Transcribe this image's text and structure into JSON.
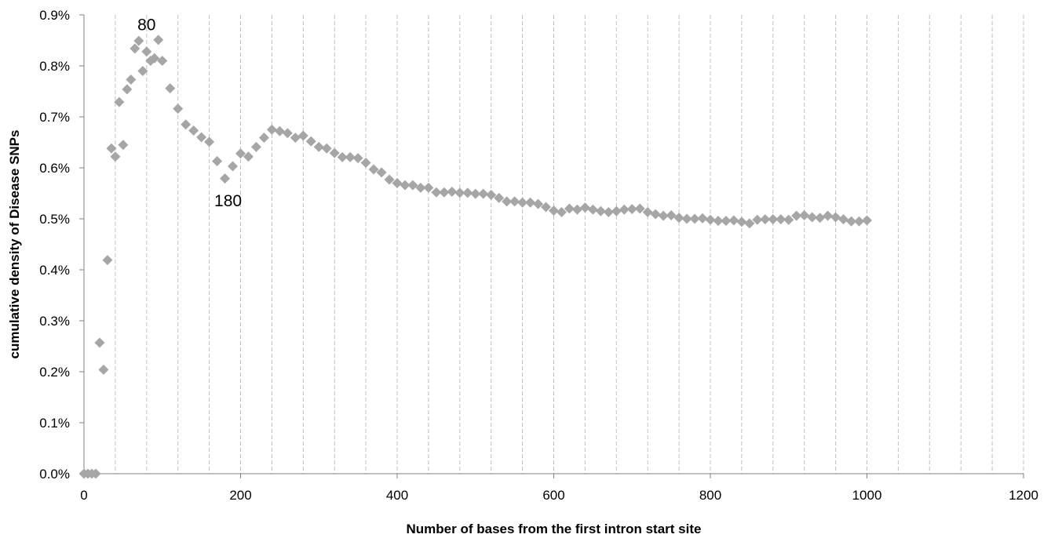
{
  "chart_data": {
    "type": "scatter",
    "xlabel": "Number of bases from the first intron start site",
    "ylabel": "cumulative density of Disease SNPs",
    "xlim": [
      0,
      1200
    ],
    "ylim": [
      0,
      0.9
    ],
    "x_ticks": [
      0,
      200,
      400,
      600,
      800,
      1000,
      1200
    ],
    "x_tick_labels": [
      "0",
      "200",
      "400",
      "600",
      "800",
      "1000",
      "1200"
    ],
    "y_ticks": [
      0,
      0.1,
      0.2,
      0.3,
      0.4,
      0.5,
      0.6,
      0.7,
      0.8,
      0.9
    ],
    "y_tick_labels": [
      "0.0%",
      "0.1%",
      "0.2%",
      "0.3%",
      "0.4%",
      "0.5%",
      "0.6%",
      "0.7%",
      "0.8%",
      "0.9%"
    ],
    "vertical_gridlines_every": 40,
    "grid": "vertical dashed",
    "marker": "diamond",
    "colors": {
      "marker": "#a6a6a6",
      "grid": "#bfbfbf",
      "axis": "#808080"
    },
    "annotations": [
      {
        "text": "80",
        "x": 80,
        "y": 0.87
      },
      {
        "text": "180",
        "x": 184,
        "y": 0.525
      }
    ],
    "points": [
      [
        0,
        0.0
      ],
      [
        5,
        0.0
      ],
      [
        10,
        0.0
      ],
      [
        15,
        0.0
      ],
      [
        20,
        0.257
      ],
      [
        25,
        0.204
      ],
      [
        30,
        0.419
      ],
      [
        35,
        0.638
      ],
      [
        40,
        0.622
      ],
      [
        45,
        0.729
      ],
      [
        50,
        0.645
      ],
      [
        55,
        0.754
      ],
      [
        60,
        0.773
      ],
      [
        65,
        0.834
      ],
      [
        70,
        0.849
      ],
      [
        75,
        0.79
      ],
      [
        80,
        0.828
      ],
      [
        85,
        0.81
      ],
      [
        90,
        0.815
      ],
      [
        95,
        0.851
      ],
      [
        100,
        0.81
      ],
      [
        110,
        0.756
      ],
      [
        120,
        0.716
      ],
      [
        130,
        0.685
      ],
      [
        140,
        0.673
      ],
      [
        150,
        0.66
      ],
      [
        160,
        0.651
      ],
      [
        170,
        0.613
      ],
      [
        180,
        0.579
      ],
      [
        190,
        0.603
      ],
      [
        200,
        0.628
      ],
      [
        210,
        0.622
      ],
      [
        220,
        0.641
      ],
      [
        230,
        0.659
      ],
      [
        240,
        0.675
      ],
      [
        250,
        0.672
      ],
      [
        260,
        0.668
      ],
      [
        270,
        0.659
      ],
      [
        280,
        0.663
      ],
      [
        290,
        0.652
      ],
      [
        300,
        0.641
      ],
      [
        310,
        0.638
      ],
      [
        320,
        0.629
      ],
      [
        330,
        0.621
      ],
      [
        340,
        0.621
      ],
      [
        350,
        0.619
      ],
      [
        360,
        0.61
      ],
      [
        370,
        0.597
      ],
      [
        380,
        0.591
      ],
      [
        390,
        0.577
      ],
      [
        400,
        0.57
      ],
      [
        410,
        0.566
      ],
      [
        420,
        0.566
      ],
      [
        430,
        0.561
      ],
      [
        440,
        0.561
      ],
      [
        450,
        0.552
      ],
      [
        460,
        0.552
      ],
      [
        470,
        0.553
      ],
      [
        480,
        0.551
      ],
      [
        490,
        0.551
      ],
      [
        500,
        0.549
      ],
      [
        510,
        0.549
      ],
      [
        520,
        0.547
      ],
      [
        530,
        0.541
      ],
      [
        540,
        0.534
      ],
      [
        550,
        0.534
      ],
      [
        560,
        0.532
      ],
      [
        570,
        0.532
      ],
      [
        580,
        0.529
      ],
      [
        590,
        0.523
      ],
      [
        600,
        0.516
      ],
      [
        610,
        0.513
      ],
      [
        620,
        0.52
      ],
      [
        630,
        0.518
      ],
      [
        640,
        0.522
      ],
      [
        650,
        0.518
      ],
      [
        660,
        0.515
      ],
      [
        670,
        0.513
      ],
      [
        680,
        0.515
      ],
      [
        690,
        0.518
      ],
      [
        700,
        0.519
      ],
      [
        710,
        0.52
      ],
      [
        720,
        0.513
      ],
      [
        730,
        0.509
      ],
      [
        740,
        0.506
      ],
      [
        750,
        0.507
      ],
      [
        760,
        0.502
      ],
      [
        770,
        0.5
      ],
      [
        780,
        0.5
      ],
      [
        790,
        0.501
      ],
      [
        800,
        0.498
      ],
      [
        810,
        0.496
      ],
      [
        820,
        0.496
      ],
      [
        830,
        0.497
      ],
      [
        840,
        0.494
      ],
      [
        850,
        0.491
      ],
      [
        860,
        0.498
      ],
      [
        870,
        0.499
      ],
      [
        880,
        0.499
      ],
      [
        890,
        0.499
      ],
      [
        900,
        0.498
      ],
      [
        910,
        0.506
      ],
      [
        920,
        0.507
      ],
      [
        930,
        0.503
      ],
      [
        940,
        0.502
      ],
      [
        950,
        0.506
      ],
      [
        960,
        0.503
      ],
      [
        970,
        0.499
      ],
      [
        980,
        0.495
      ],
      [
        990,
        0.495
      ],
      [
        1000,
        0.497
      ]
    ]
  }
}
